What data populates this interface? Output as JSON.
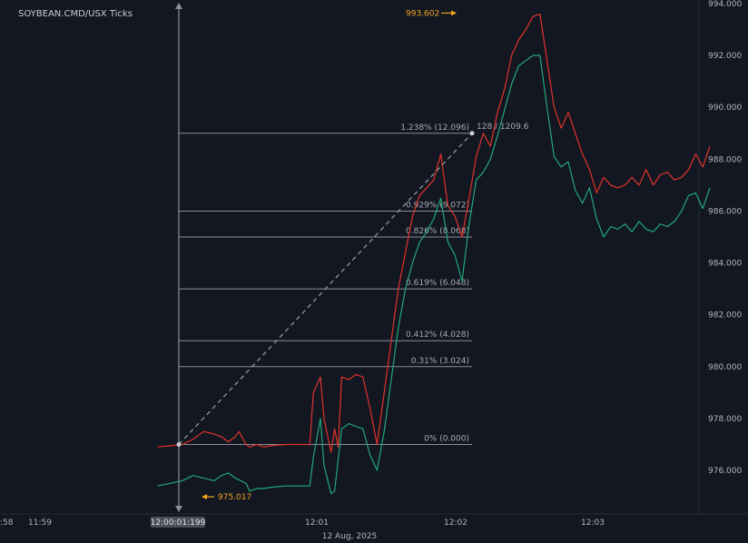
{
  "title": "SOYBEAN.CMD/USX Ticks",
  "colors": {
    "background": "#131722",
    "ask_line": "#e0332b",
    "bid_line": "#22a878",
    "fib_line": "#8a8e99",
    "fib_text": "#a7aab3",
    "marker_text": "#f0a51f",
    "axis_text": "#b2b5be",
    "time_highlight_bg": "#4a4e59"
  },
  "chart_data": {
    "type": "line",
    "y_axis": {
      "min": 974.6,
      "max": 994.0,
      "ticks": [
        994.0,
        992.0,
        990.0,
        988.0,
        986.0,
        984.0,
        982.0,
        980.0,
        978.0,
        976.0
      ],
      "tick_labels": [
        "994.000",
        "992.000",
        "990.000",
        "988.000",
        "986.000",
        "984.000",
        "982.000",
        "980.000",
        "978.000",
        "976.000"
      ]
    },
    "x_axis": {
      "tick_labels": [
        ":58",
        "11:59",
        "12:01",
        "12:02",
        "12:03"
      ],
      "highlight_label": "12:00:01:199",
      "date_label": "12 Aug, 2025"
    },
    "series": [
      {
        "key": "ask",
        "points": [
          [
            -3,
            976.9
          ],
          [
            0.5,
            977.0
          ],
          [
            2,
            977.2
          ],
          [
            3.5,
            977.5
          ],
          [
            5,
            977.4
          ],
          [
            6,
            977.3
          ],
          [
            7,
            977.1
          ],
          [
            8,
            977.3
          ],
          [
            8.5,
            977.5
          ],
          [
            9.5,
            977.0
          ],
          [
            10,
            976.9
          ],
          [
            11,
            977.0
          ],
          [
            12,
            976.9
          ],
          [
            13,
            976.95
          ],
          [
            15,
            977.0
          ],
          [
            17,
            977.0
          ],
          [
            18.5,
            977.0
          ],
          [
            19,
            979.0
          ],
          [
            20,
            979.6
          ],
          [
            20.5,
            978.0
          ],
          [
            21.5,
            976.7
          ],
          [
            22,
            977.6
          ],
          [
            22.5,
            976.9
          ],
          [
            23,
            979.6
          ],
          [
            24,
            979.5
          ],
          [
            25,
            979.7
          ],
          [
            26,
            979.6
          ],
          [
            27,
            978.4
          ],
          [
            28,
            977.0
          ],
          [
            29,
            979.0
          ],
          [
            30,
            981.0
          ],
          [
            31,
            983.0
          ],
          [
            32,
            984.4
          ],
          [
            33,
            985.8
          ],
          [
            34,
            986.6
          ],
          [
            35,
            986.9
          ],
          [
            36,
            987.2
          ],
          [
            37,
            988.2
          ],
          [
            38,
            986.2
          ],
          [
            39,
            985.8
          ],
          [
            40,
            985.0
          ],
          [
            41,
            986.5
          ],
          [
            42,
            988.1
          ],
          [
            43,
            989.0
          ],
          [
            44,
            988.5
          ],
          [
            45,
            989.8
          ],
          [
            46,
            990.7
          ],
          [
            47,
            992.0
          ],
          [
            48,
            992.6
          ],
          [
            49,
            993.0
          ],
          [
            50,
            993.5
          ],
          [
            51,
            993.6
          ],
          [
            52,
            991.8
          ],
          [
            53,
            990.0
          ],
          [
            54,
            989.2
          ],
          [
            55,
            989.8
          ],
          [
            56,
            989.0
          ],
          [
            57,
            988.2
          ],
          [
            58,
            987.6
          ],
          [
            59,
            986.7
          ],
          [
            60,
            987.3
          ],
          [
            61,
            987.0
          ],
          [
            62,
            986.9
          ],
          [
            63,
            987.0
          ],
          [
            64,
            987.3
          ],
          [
            65,
            987.0
          ],
          [
            66,
            987.6
          ],
          [
            67,
            987.0
          ],
          [
            68,
            987.4
          ],
          [
            69,
            987.5
          ],
          [
            70,
            987.2
          ],
          [
            71,
            987.3
          ],
          [
            72,
            987.6
          ],
          [
            73,
            988.2
          ],
          [
            74,
            987.7
          ],
          [
            75,
            988.5
          ]
        ]
      },
      {
        "key": "bid",
        "points": [
          [
            -3,
            975.4
          ],
          [
            0.5,
            975.6
          ],
          [
            2,
            975.8
          ],
          [
            3.5,
            975.7
          ],
          [
            5,
            975.6
          ],
          [
            6,
            975.8
          ],
          [
            7,
            975.9
          ],
          [
            8,
            975.7
          ],
          [
            9.5,
            975.5
          ],
          [
            10,
            975.2
          ],
          [
            11,
            975.3
          ],
          [
            12,
            975.3
          ],
          [
            13,
            975.35
          ],
          [
            15,
            975.4
          ],
          [
            17,
            975.4
          ],
          [
            18.5,
            975.4
          ],
          [
            19,
            976.5
          ],
          [
            20,
            978.0
          ],
          [
            20.5,
            976.2
          ],
          [
            21.5,
            975.1
          ],
          [
            22,
            975.2
          ],
          [
            23,
            977.6
          ],
          [
            24,
            977.8
          ],
          [
            25,
            977.7
          ],
          [
            26,
            977.6
          ],
          [
            27,
            976.6
          ],
          [
            28,
            976.0
          ],
          [
            29,
            977.5
          ],
          [
            30,
            979.5
          ],
          [
            31,
            981.5
          ],
          [
            32,
            983.0
          ],
          [
            33,
            984.0
          ],
          [
            34,
            984.8
          ],
          [
            35,
            985.2
          ],
          [
            36,
            985.7
          ],
          [
            37,
            986.5
          ],
          [
            38,
            984.8
          ],
          [
            39,
            984.3
          ],
          [
            40,
            983.3
          ],
          [
            41,
            985.5
          ],
          [
            42,
            987.2
          ],
          [
            43,
            987.5
          ],
          [
            44,
            988.0
          ],
          [
            45,
            988.9
          ],
          [
            46,
            989.9
          ],
          [
            47,
            990.9
          ],
          [
            48,
            991.6
          ],
          [
            49,
            991.8
          ],
          [
            50,
            992.0
          ],
          [
            51,
            992.0
          ],
          [
            52,
            990.0
          ],
          [
            53,
            988.1
          ],
          [
            54,
            987.7
          ],
          [
            55,
            987.9
          ],
          [
            56,
            986.8
          ],
          [
            57,
            986.3
          ],
          [
            58,
            986.9
          ],
          [
            59,
            985.7
          ],
          [
            60,
            985.0
          ],
          [
            61,
            985.4
          ],
          [
            62,
            985.3
          ],
          [
            63,
            985.5
          ],
          [
            64,
            985.2
          ],
          [
            65,
            985.6
          ],
          [
            66,
            985.3
          ],
          [
            67,
            985.2
          ],
          [
            68,
            985.5
          ],
          [
            69,
            985.4
          ],
          [
            70,
            985.6
          ],
          [
            71,
            986.0
          ],
          [
            72,
            986.6
          ],
          [
            73,
            986.7
          ],
          [
            74,
            986.1
          ],
          [
            75,
            986.9
          ]
        ]
      }
    ],
    "fib_levels": [
      {
        "value": 989.0,
        "label": "1.238% (12.096)"
      },
      {
        "value": 986.0,
        "label": "0.929% (9.072)"
      },
      {
        "value": 985.0,
        "label": "0.826% (8.068)"
      },
      {
        "value": 983.0,
        "label": "0.619% (6.048)"
      },
      {
        "value": 981.0,
        "label": "0.412% (4.028)"
      },
      {
        "value": 980.0,
        "label": "0.31% (3.024)"
      },
      {
        "value": 977.0,
        "label": "0% (0.000)"
      }
    ],
    "measure_label": "128 / 1209.6",
    "markers": [
      {
        "label": "993.602",
        "value": 993.602
      },
      {
        "label": "975.017",
        "value": 975.017
      }
    ]
  }
}
